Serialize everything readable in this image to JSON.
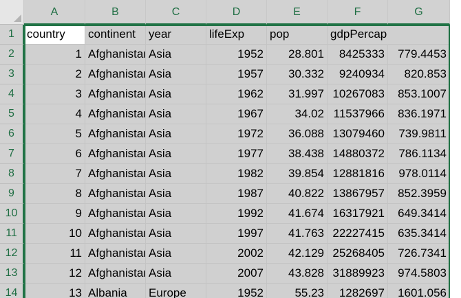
{
  "columns": [
    "A",
    "B",
    "C",
    "D",
    "E",
    "F",
    "G"
  ],
  "header_row": {
    "number": "1",
    "cells": [
      "country",
      "continent",
      "year",
      "lifeExp",
      "pop",
      "gdpPercap",
      ""
    ]
  },
  "rows": [
    {
      "number": "2",
      "cells": [
        "1",
        "Afghanistan",
        "Asia",
        "1952",
        "28.801",
        "8425333",
        "779.4453"
      ]
    },
    {
      "number": "3",
      "cells": [
        "2",
        "Afghanistan",
        "Asia",
        "1957",
        "30.332",
        "9240934",
        "820.853"
      ]
    },
    {
      "number": "4",
      "cells": [
        "3",
        "Afghanistan",
        "Asia",
        "1962",
        "31.997",
        "10267083",
        "853.1007"
      ]
    },
    {
      "number": "5",
      "cells": [
        "4",
        "Afghanistan",
        "Asia",
        "1967",
        "34.02",
        "11537966",
        "836.1971"
      ]
    },
    {
      "number": "6",
      "cells": [
        "5",
        "Afghanistan",
        "Asia",
        "1972",
        "36.088",
        "13079460",
        "739.9811"
      ]
    },
    {
      "number": "7",
      "cells": [
        "6",
        "Afghanistan",
        "Asia",
        "1977",
        "38.438",
        "14880372",
        "786.1134"
      ]
    },
    {
      "number": "8",
      "cells": [
        "7",
        "Afghanistan",
        "Asia",
        "1982",
        "39.854",
        "12881816",
        "978.0114"
      ]
    },
    {
      "number": "9",
      "cells": [
        "8",
        "Afghanistan",
        "Asia",
        "1987",
        "40.822",
        "13867957",
        "852.3959"
      ]
    },
    {
      "number": "10",
      "cells": [
        "9",
        "Afghanistan",
        "Asia",
        "1992",
        "41.674",
        "16317921",
        "649.3414"
      ]
    },
    {
      "number": "11",
      "cells": [
        "10",
        "Afghanistan",
        "Asia",
        "1997",
        "41.763",
        "22227415",
        "635.3414"
      ]
    },
    {
      "number": "12",
      "cells": [
        "11",
        "Afghanistan",
        "Asia",
        "2002",
        "42.129",
        "25268405",
        "726.7341"
      ]
    },
    {
      "number": "13",
      "cells": [
        "12",
        "Afghanistan",
        "Asia",
        "2007",
        "43.828",
        "31889923",
        "974.5803"
      ]
    },
    {
      "number": "14",
      "cells": [
        "13",
        "Albania",
        "Europe",
        "1952",
        "55.23",
        "1282697",
        "1601.056"
      ]
    }
  ],
  "colors": {
    "accent": "#217346",
    "selection": "#d0d0d0",
    "active_cell": "#ffffff"
  }
}
